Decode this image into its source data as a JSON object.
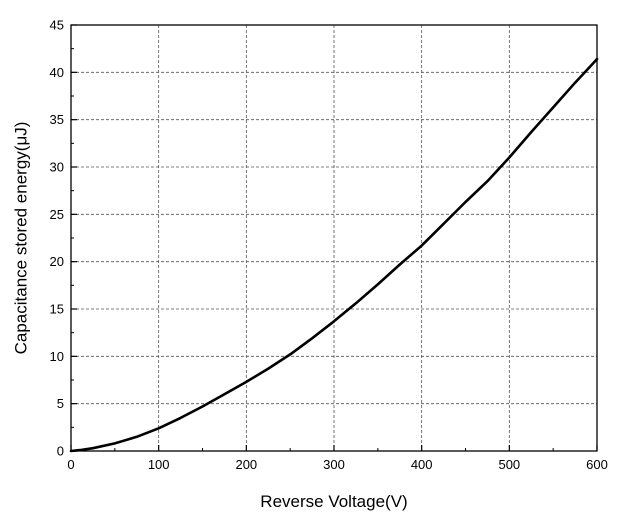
{
  "chart_data": {
    "type": "line",
    "title": "",
    "xlabel": "Reverse Voltage(V)",
    "ylabel": "Capacitance stored energy(μJ)",
    "xlim": [
      0,
      600
    ],
    "ylim": [
      0,
      45
    ],
    "xticks": [
      0,
      100,
      200,
      300,
      400,
      500,
      600
    ],
    "yticks": [
      0,
      5,
      10,
      15,
      20,
      25,
      30,
      35,
      40,
      45
    ],
    "grid": true,
    "legend": "none",
    "series": [
      {
        "color": "#000000",
        "x": [
          0,
          10,
          25,
          50,
          75,
          100,
          125,
          150,
          175,
          200,
          225,
          250,
          275,
          300,
          325,
          350,
          375,
          400,
          425,
          450,
          475,
          500,
          525,
          550,
          575,
          600
        ],
        "y": [
          0,
          0.1,
          0.3,
          0.8,
          1.5,
          2.4,
          3.5,
          4.7,
          6.0,
          7.3,
          8.7,
          10.2,
          11.9,
          13.7,
          15.6,
          17.6,
          19.7,
          21.7,
          24.0,
          26.3,
          28.5,
          31.0,
          33.7,
          36.3,
          38.9,
          41.4
        ]
      }
    ]
  }
}
